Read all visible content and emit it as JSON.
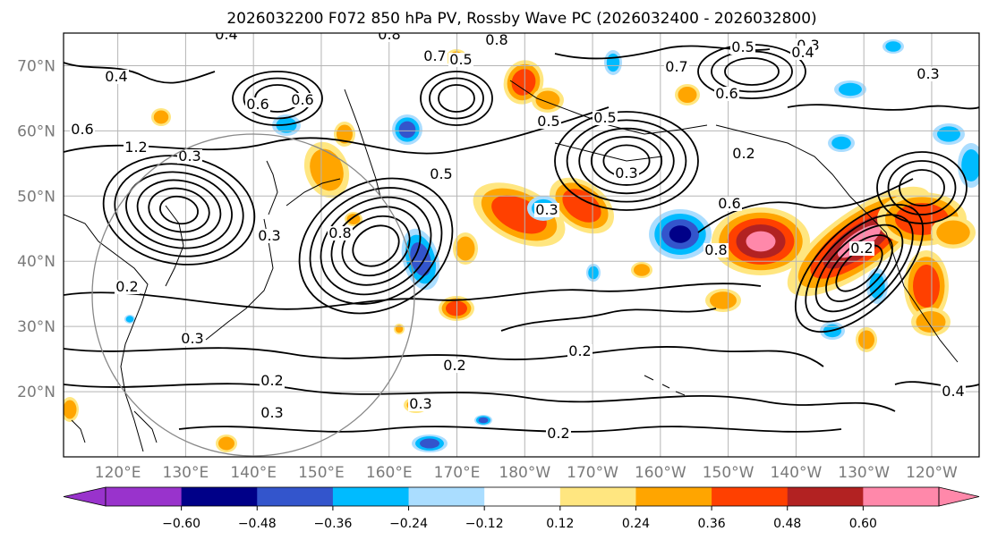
{
  "title": "2026032200 F072 850 hPa PV, Rossby Wave PC (2026032400 - 2026032800)",
  "map": {
    "lat_ticks": [
      "70°N",
      "60°N",
      "50°N",
      "40°N",
      "30°N",
      "20°N"
    ],
    "lon_ticks": [
      "120°E",
      "130°E",
      "140°E",
      "150°E",
      "160°E",
      "170°E",
      "180°W",
      "170°W",
      "160°W",
      "150°W",
      "140°W",
      "130°W",
      "120°W"
    ],
    "contour_labels": [
      "0.4",
      "0.8",
      "0.8",
      "0.5",
      "0.3",
      "0.4",
      "0.7",
      "0.7",
      "0.6",
      "0.5",
      "0.4",
      "0.3",
      "0.6",
      "0.6",
      "0.5",
      "0.6",
      "0.5",
      "1.2",
      "0.3",
      "0.3",
      "0.2",
      "0.6",
      "0.8",
      "0.2",
      "0.3",
      "0.3",
      "0.2",
      "0.2",
      "0.2",
      "0.2",
      "0.3",
      "0.3",
      "0.2",
      "0.4",
      "0.3",
      "0.8",
      "0.5"
    ]
  },
  "colorbar": {
    "ticks": [
      "−0.60",
      "−0.48",
      "−0.36",
      "−0.24",
      "−0.12",
      "0.12",
      "0.24",
      "0.36",
      "0.48",
      "0.60"
    ],
    "colors": [
      "#9933cc",
      "#000088",
      "#3355cc",
      "#00bbff",
      "#aaddff",
      "#ffffff",
      "#ffe680",
      "#ffa500",
      "#ff4000",
      "#b22222",
      "#ff88aa"
    ]
  },
  "chart_data": {
    "type": "heatmap",
    "title": "2026032200 F072 850 hPa PV, Rossby Wave PC (2026032400 - 2026032800)",
    "xlabel": "",
    "ylabel": "",
    "x_ticks": [
      "120°E",
      "130°E",
      "140°E",
      "150°E",
      "160°E",
      "170°E",
      "180°W",
      "170°W",
      "160°W",
      "150°W",
      "140°W",
      "130°W",
      "120°W"
    ],
    "y_ticks": [
      "70°N",
      "60°N",
      "50°N",
      "40°N",
      "30°N",
      "20°N"
    ],
    "lon_range": [
      112,
      247
    ],
    "lat_range": [
      10,
      75
    ],
    "colorbar_levels": [
      -0.6,
      -0.48,
      -0.36,
      -0.24,
      -0.12,
      0.12,
      0.24,
      0.36,
      0.48,
      0.6
    ],
    "contour_variable": "850 hPa PV",
    "contour_values": [
      0.2,
      0.3,
      0.4,
      0.5,
      0.6,
      0.7,
      0.8,
      1.2
    ],
    "shaded_variable": "Rossby Wave PC"
  }
}
